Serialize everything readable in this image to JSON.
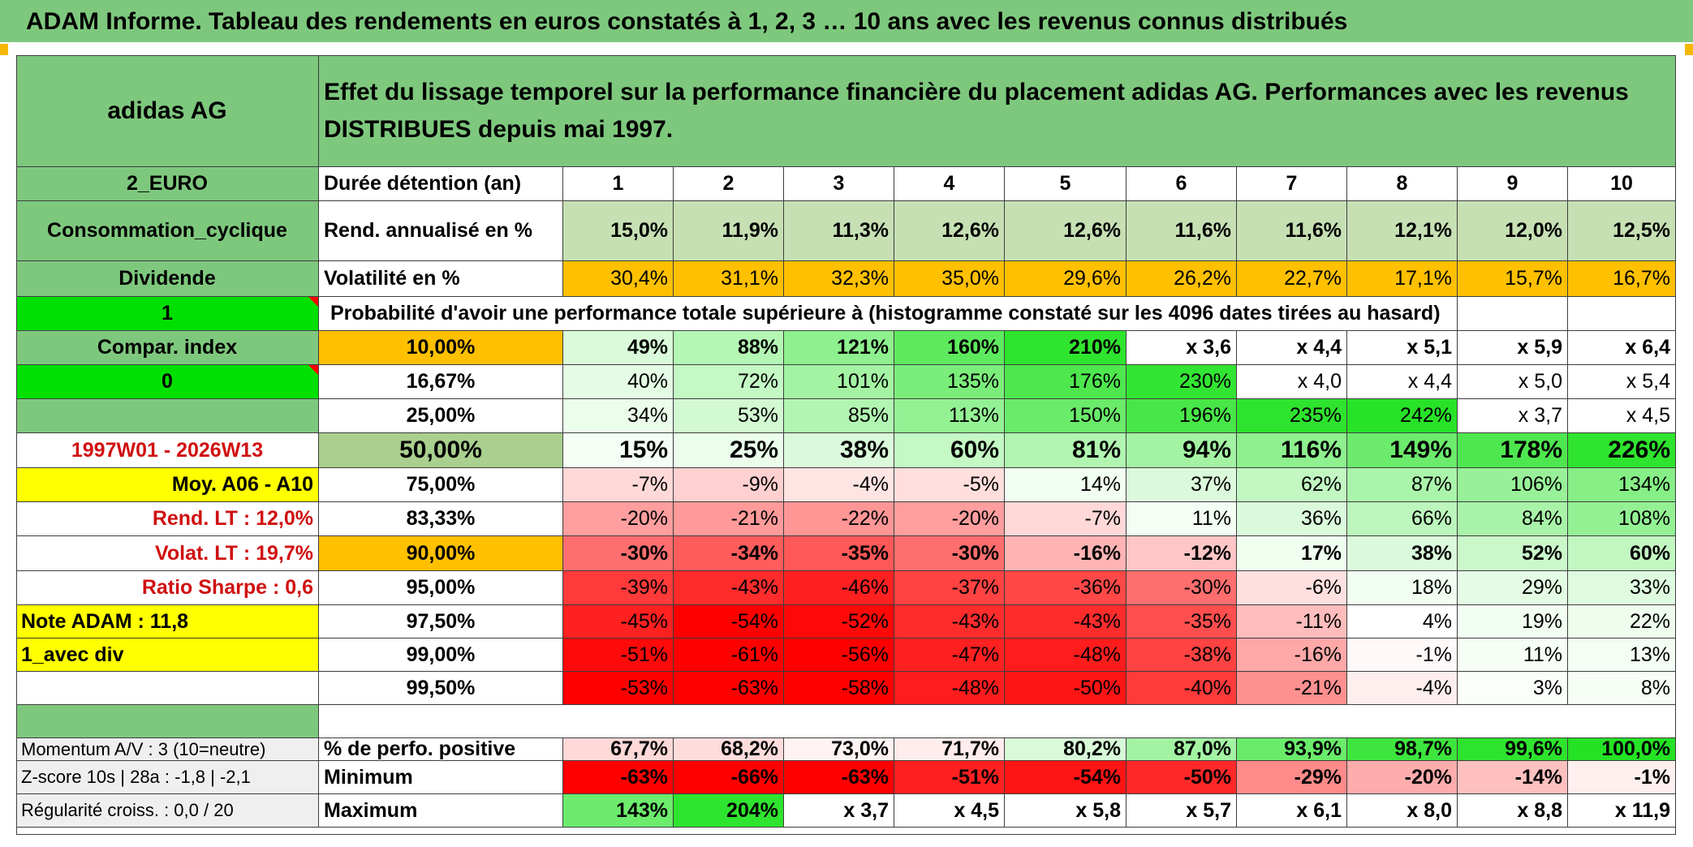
{
  "title": "ADAM Informe. Tableau des rendements en euros constatés à 1, 2, 3 … 10 ans avec les revenus connus distribués",
  "company": "adidas AG",
  "description": "Effet du lissage temporel sur la performance financière du placement adidas AG. Performances avec les revenus DISTRIBUES depuis mai 1997.",
  "side": {
    "currency": "2_EURO",
    "sector": "Consommation_cyclique",
    "dividend": "Dividende",
    "one": "1",
    "compar_index": "Compar. index",
    "zero": "0",
    "period": "1997W01 - 2026W13",
    "moy": "Moy. A06 - A10",
    "rend_lt": "Rend. LT :   12,0%",
    "volat_lt": "Volat. LT :   19,7%",
    "sharpe": "Ratio Sharpe :    0,6",
    "note": "Note ADAM : 11,8",
    "avec_div": "1_avec div",
    "momentum": "Momentum A/V : 3 (10=neutre)",
    "zscore": "Z-score 10s | 28a : -1,8 | -2,1",
    "regularite": "Régularité croiss. : 0,0 / 20"
  },
  "header_label": "Durée détention (an)",
  "years": [
    "1",
    "2",
    "3",
    "4",
    "5",
    "6",
    "7",
    "8",
    "9",
    "10"
  ],
  "rend_label": "Rend. annualisé en %",
  "rend_values": [
    "15,0%",
    "11,9%",
    "11,3%",
    "12,6%",
    "12,6%",
    "11,6%",
    "11,6%",
    "12,1%",
    "12,0%",
    "12,5%"
  ],
  "vol_label": "Volatilité en %",
  "vol_values": [
    "30,4%",
    "31,1%",
    "32,3%",
    "35,0%",
    "29,6%",
    "26,2%",
    "22,7%",
    "17,1%",
    "15,7%",
    "16,7%"
  ],
  "prob_caption": "Probabilité d'avoir une performance totale supérieure à (histogramme constaté sur les 4096 dates tirées au hasard)",
  "percentile_rows": [
    {
      "p": "10,00%",
      "values": [
        "49%",
        "88%",
        "121%",
        "160%",
        "210%",
        "x 3,6",
        "x 4,4",
        "x 5,1",
        "x 5,9",
        "x 6,4"
      ]
    },
    {
      "p": "16,67%",
      "values": [
        "40%",
        "72%",
        "101%",
        "135%",
        "176%",
        "230%",
        "x 4,0",
        "x 4,4",
        "x 5,0",
        "x 5,4"
      ]
    },
    {
      "p": "25,00%",
      "values": [
        "34%",
        "53%",
        "85%",
        "113%",
        "150%",
        "196%",
        "235%",
        "242%",
        "x 3,7",
        "x 4,5"
      ]
    },
    {
      "p": "50,00%",
      "values": [
        "15%",
        "25%",
        "38%",
        "60%",
        "81%",
        "94%",
        "116%",
        "149%",
        "178%",
        "226%"
      ]
    },
    {
      "p": "75,00%",
      "values": [
        "-7%",
        "-9%",
        "-4%",
        "-5%",
        "14%",
        "37%",
        "62%",
        "87%",
        "106%",
        "134%"
      ]
    },
    {
      "p": "83,33%",
      "values": [
        "-20%",
        "-21%",
        "-22%",
        "-20%",
        "-7%",
        "11%",
        "36%",
        "66%",
        "84%",
        "108%"
      ]
    },
    {
      "p": "90,00%",
      "values": [
        "-30%",
        "-34%",
        "-35%",
        "-30%",
        "-16%",
        "-12%",
        "17%",
        "38%",
        "52%",
        "60%"
      ]
    },
    {
      "p": "95,00%",
      "values": [
        "-39%",
        "-43%",
        "-46%",
        "-37%",
        "-36%",
        "-30%",
        "-6%",
        "18%",
        "29%",
        "33%"
      ]
    },
    {
      "p": "97,50%",
      "values": [
        "-45%",
        "-54%",
        "-52%",
        "-43%",
        "-43%",
        "-35%",
        "-11%",
        "4%",
        "19%",
        "22%"
      ]
    },
    {
      "p": "99,00%",
      "values": [
        "-51%",
        "-61%",
        "-56%",
        "-47%",
        "-48%",
        "-38%",
        "-16%",
        "-1%",
        "11%",
        "13%"
      ]
    },
    {
      "p": "99,50%",
      "values": [
        "-53%",
        "-63%",
        "-58%",
        "-48%",
        "-50%",
        "-40%",
        "-21%",
        "-4%",
        "3%",
        "8%"
      ]
    }
  ],
  "bottom_rows": [
    {
      "label": "% de perfo. positive",
      "values": [
        "67,7%",
        "68,2%",
        "73,0%",
        "71,7%",
        "80,2%",
        "87,0%",
        "93,9%",
        "98,7%",
        "99,6%",
        "100,0%"
      ]
    },
    {
      "label": "Minimum",
      "values": [
        "-63%",
        "-66%",
        "-63%",
        "-51%",
        "-54%",
        "-50%",
        "-29%",
        "-20%",
        "-14%",
        "-1%"
      ]
    },
    {
      "label": "Maximum",
      "values": [
        "143%",
        "204%",
        "x 3,7",
        "x 4,5",
        "x 5,8",
        "x 5,7",
        "x 6,1",
        "x 8,0",
        "x 8,8",
        "x 11,9"
      ]
    }
  ],
  "colors": {
    "header_green": "#7ec87e",
    "rend_bg": "#c6e0b4",
    "vol_bg": "#ffc000",
    "yellow": "#ffff00",
    "bright_green": "#00e000",
    "p10_bg": "#ffc000",
    "p50_bg": "#a9d08e"
  },
  "cell_colors": {
    "percentile_rows": [
      [
        "#d9fbd9",
        "#b4f6b4",
        "#8ef08e",
        "#5eea5e",
        "#2fe42f",
        "#ffffff",
        "#ffffff",
        "#ffffff",
        "#ffffff",
        "#ffffff"
      ],
      [
        "#e4fce4",
        "#c4f8c4",
        "#a3f3a3",
        "#7bed7b",
        "#4ee74e",
        "#33e533",
        "#ffffff",
        "#ffffff",
        "#ffffff",
        "#ffffff"
      ],
      [
        "#ebfdeb",
        "#d2f9d2",
        "#b2f5b2",
        "#94f194",
        "#6aeb6a",
        "#48e648",
        "#2ee32e",
        "#28e228",
        "#ffffff",
        "#ffffff"
      ],
      [
        "#f4fef4",
        "#ebfdeb",
        "#dbfadb",
        "#c4f8c4",
        "#b1f5b1",
        "#a3f3a3",
        "#8ef08e",
        "#6ceb6c",
        "#4fe74f",
        "#2fe42f"
      ],
      [
        "#ffd8d8",
        "#ffd0d0",
        "#ffe4e4",
        "#ffdede",
        "#f1fef1",
        "#dbfadb",
        "#c2f7c2",
        "#abf4ab",
        "#98f198",
        "#86ef86"
      ],
      [
        "#ff9e9e",
        "#ff9a9a",
        "#ff9696",
        "#ff9e9e",
        "#ffd8d8",
        "#f4fef4",
        "#dbfadb",
        "#bcf6bc",
        "#a9f3a9",
        "#93f193"
      ],
      [
        "#ff6e6e",
        "#ff5c5c",
        "#ff5858",
        "#ff6e6e",
        "#ffb4b4",
        "#ffc6c6",
        "#f0fef0",
        "#dbfadb",
        "#cbf8cb",
        "#c2f7c2"
      ],
      [
        "#ff3a3a",
        "#ff2c2c",
        "#ff2020",
        "#ff4242",
        "#ff4848",
        "#ff6e6e",
        "#ffe0e0",
        "#f1fef1",
        "#e4fce4",
        "#dffbdf"
      ],
      [
        "#ff2020",
        "#ff0000",
        "#ff0808",
        "#ff2c2c",
        "#ff2c2c",
        "#ff4e4e",
        "#ffbcbc",
        "#ffffff",
        "#f1fef1",
        "#eefdee"
      ],
      [
        "#ff0a0a",
        "#ff0000",
        "#ff0000",
        "#ff2020",
        "#ff1c1c",
        "#ff4242",
        "#ffa8a8",
        "#fff8f8",
        "#f6fef6",
        "#f4fef4"
      ],
      [
        "#ff0000",
        "#ff0000",
        "#ff0000",
        "#ff1c1c",
        "#ff1414",
        "#ff3a3a",
        "#ff9090",
        "#ffeeee",
        "#fafffa",
        "#f6fef6"
      ]
    ],
    "bottom_rows": [
      [
        "#ffd8d8",
        "#ffdcdc",
        "#fff2f2",
        "#ffecec",
        "#d8fad8",
        "#a3f3a3",
        "#6aeb6a",
        "#3ee53e",
        "#2ee32e",
        "#25e225"
      ],
      [
        "#ff0000",
        "#ff0000",
        "#ff0000",
        "#ff2020",
        "#ff1414",
        "#ff2828",
        "#ff8a8a",
        "#ffacac",
        "#ffc0c0",
        "#fff0f0"
      ],
      [
        "#6ceb6c",
        "#2fe42f",
        "#ffffff",
        "#ffffff",
        "#ffffff",
        "#ffffff",
        "#ffffff",
        "#ffffff",
        "#ffffff",
        "#ffffff"
      ]
    ]
  }
}
